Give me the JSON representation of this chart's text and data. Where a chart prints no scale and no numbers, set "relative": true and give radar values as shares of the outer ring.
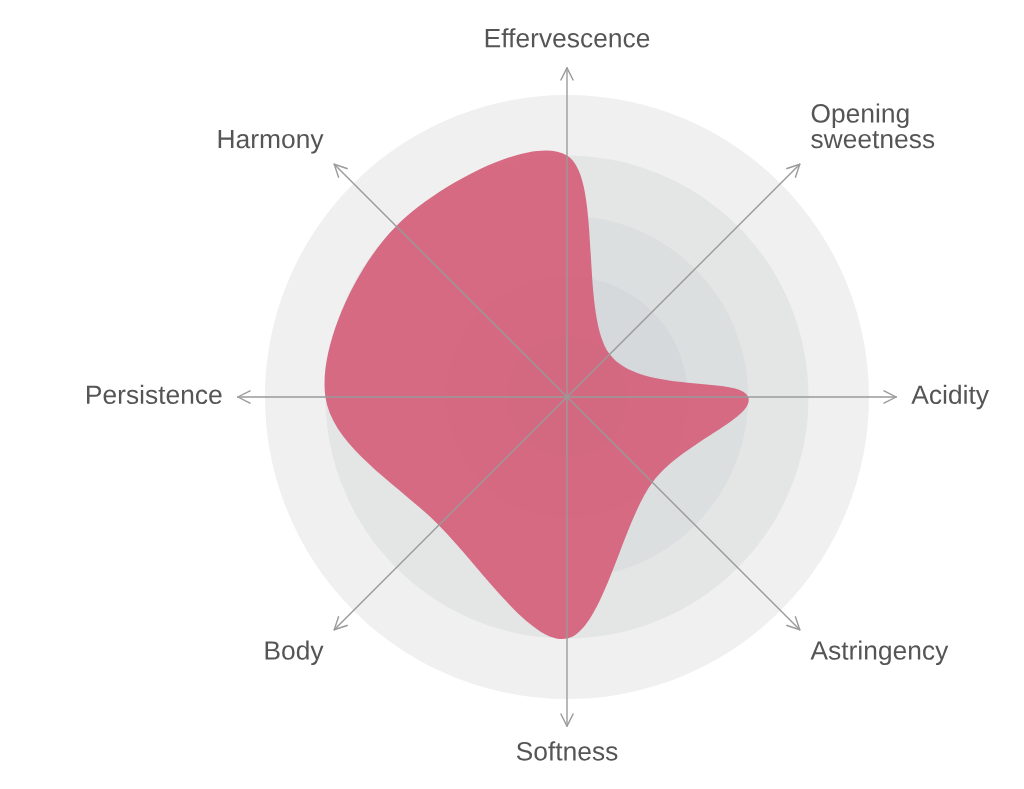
{
  "chart_data": {
    "type": "radar",
    "relative": true,
    "categories": [
      "Effervescence",
      "Opening\nsweetness",
      "Acidity",
      "Astringency",
      "Softness",
      "Body",
      "Persistence",
      "Harmony"
    ],
    "series": [
      {
        "color": "#d4607a",
        "values": [
          0.8,
          0.2,
          0.6,
          0.4,
          0.8,
          0.6,
          0.8,
          0.8
        ]
      }
    ]
  }
}
